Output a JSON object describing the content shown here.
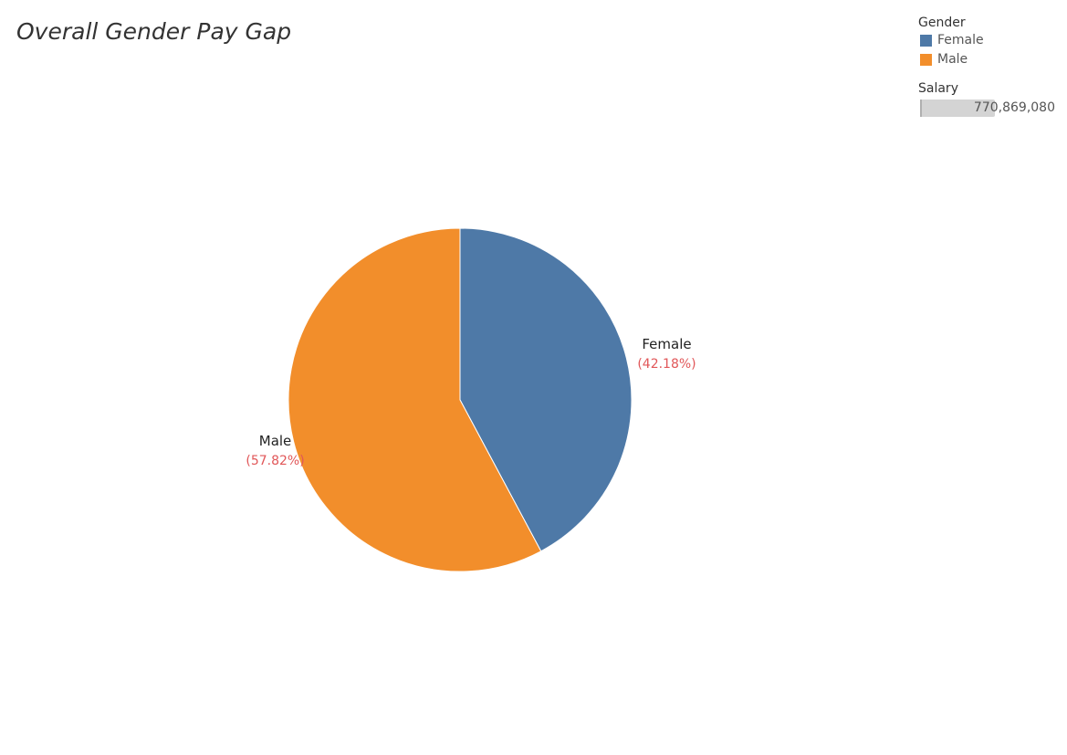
{
  "title": "Overall Gender Pay Gap",
  "legend": {
    "gender_title": "Gender",
    "items": [
      {
        "label": "Female",
        "color": "#4e79a7"
      },
      {
        "label": "Male",
        "color": "#f28e2b"
      }
    ],
    "salary_title": "Salary",
    "salary_value": "770,869,080"
  },
  "chart_data": {
    "type": "pie",
    "title": "Overall Gender Pay Gap",
    "slices": [
      {
        "label": "Female",
        "percent_label": "(42.18%)",
        "value": 42.18,
        "color": "#4e79a7"
      },
      {
        "label": "Male",
        "percent_label": "(57.82%)",
        "value": 57.82,
        "color": "#f28e2b"
      }
    ],
    "start_angle": "12 o'clock",
    "direction": "clockwise",
    "legend_position": "top-right",
    "label_colors": {
      "name": "#222222",
      "percent": "#e15759"
    }
  }
}
